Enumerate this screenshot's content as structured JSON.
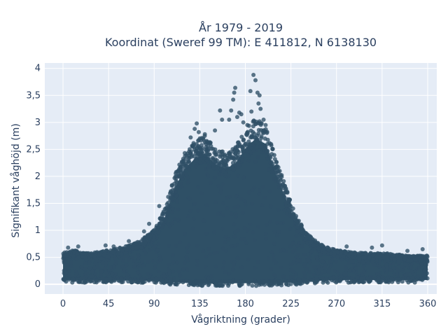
{
  "chart_data": {
    "type": "scatter",
    "title_lines": [
      "År 1979 - 2019",
      "Koordinat (Sweref 99 TM): E 411812, N 6138130"
    ],
    "xlabel": "Vågriktning (grader)",
    "ylabel": "Signifikant våghöjd (m)",
    "xlim": [
      -18,
      369
    ],
    "ylim": [
      -0.18,
      4.1
    ],
    "x_ticks": [
      0,
      45,
      90,
      135,
      180,
      225,
      270,
      315,
      360
    ],
    "x_tick_labels": [
      "0",
      "45",
      "90",
      "135",
      "180",
      "225",
      "270",
      "315",
      "360"
    ],
    "y_ticks": [
      0,
      0.5,
      1,
      1.5,
      2,
      2.5,
      3,
      3.5,
      4
    ],
    "y_tick_labels": [
      "0",
      "0,5",
      "1",
      "1,5",
      "2",
      "2,5",
      "3",
      "3,5",
      "4"
    ],
    "grid": true,
    "marker_color": "#2f5066",
    "envelope": {
      "direction": [
        0,
        10,
        20,
        30,
        45,
        60,
        75,
        90,
        100,
        110,
        120,
        130,
        140,
        150,
        160,
        170,
        180,
        190,
        200,
        210,
        220,
        230,
        240,
        250,
        260,
        270,
        290,
        315,
        340,
        360
      ],
      "upper_height": [
        0.55,
        0.6,
        0.55,
        0.55,
        0.6,
        0.65,
        0.75,
        0.95,
        1.3,
        1.9,
        2.3,
        2.5,
        2.6,
        2.4,
        2.3,
        2.4,
        2.7,
        2.9,
        2.8,
        2.2,
        1.7,
        1.2,
        0.9,
        0.75,
        0.65,
        0.6,
        0.55,
        0.55,
        0.5,
        0.5
      ],
      "lower_height": [
        0.08,
        0.08,
        0.08,
        0.08,
        0.08,
        0.08,
        0.07,
        0.06,
        0.05,
        0.04,
        0.03,
        0.03,
        0.02,
        0.02,
        0.02,
        0.02,
        0.02,
        0.02,
        0.02,
        0.03,
        0.03,
        0.04,
        0.05,
        0.06,
        0.07,
        0.08,
        0.08,
        0.08,
        0.08,
        0.08
      ]
    },
    "outlier_points": [
      {
        "x": 188,
        "y": 3.88
      },
      {
        "x": 190,
        "y": 3.78
      },
      {
        "x": 192,
        "y": 3.55
      },
      {
        "x": 194,
        "y": 3.5
      },
      {
        "x": 185,
        "y": 3.58
      },
      {
        "x": 186,
        "y": 3.2
      },
      {
        "x": 193,
        "y": 3.35
      },
      {
        "x": 195,
        "y": 3.25
      },
      {
        "x": 170,
        "y": 3.64
      },
      {
        "x": 169,
        "y": 3.55
      },
      {
        "x": 168,
        "y": 3.42
      },
      {
        "x": 166,
        "y": 3.22
      },
      {
        "x": 174,
        "y": 3.18
      },
      {
        "x": 172,
        "y": 3.1
      },
      {
        "x": 164,
        "y": 3.05
      },
      {
        "x": 178,
        "y": 3.0
      },
      {
        "x": 182,
        "y": 2.95
      },
      {
        "x": 198,
        "y": 3.05
      },
      {
        "x": 200,
        "y": 2.95
      },
      {
        "x": 176,
        "y": 3.15
      },
      {
        "x": 132,
        "y": 2.98
      },
      {
        "x": 130,
        "y": 2.88
      },
      {
        "x": 134,
        "y": 2.82
      },
      {
        "x": 155,
        "y": 3.22
      },
      {
        "x": 157,
        "y": 3.05
      },
      {
        "x": 150,
        "y": 2.85
      },
      {
        "x": 126,
        "y": 2.72
      },
      {
        "x": 140,
        "y": 2.78
      },
      {
        "x": 5,
        "y": 0.68
      },
      {
        "x": 15,
        "y": 0.7
      },
      {
        "x": 42,
        "y": 0.72
      },
      {
        "x": 50,
        "y": 0.7
      },
      {
        "x": 65,
        "y": 0.8
      },
      {
        "x": 80,
        "y": 0.98
      },
      {
        "x": 85,
        "y": 1.12
      },
      {
        "x": 95,
        "y": 1.45
      },
      {
        "x": 240,
        "y": 0.85
      },
      {
        "x": 255,
        "y": 0.72
      },
      {
        "x": 280,
        "y": 0.7
      },
      {
        "x": 305,
        "y": 0.68
      },
      {
        "x": 315,
        "y": 0.72
      },
      {
        "x": 340,
        "y": 0.62
      },
      {
        "x": 355,
        "y": 0.65
      }
    ]
  }
}
